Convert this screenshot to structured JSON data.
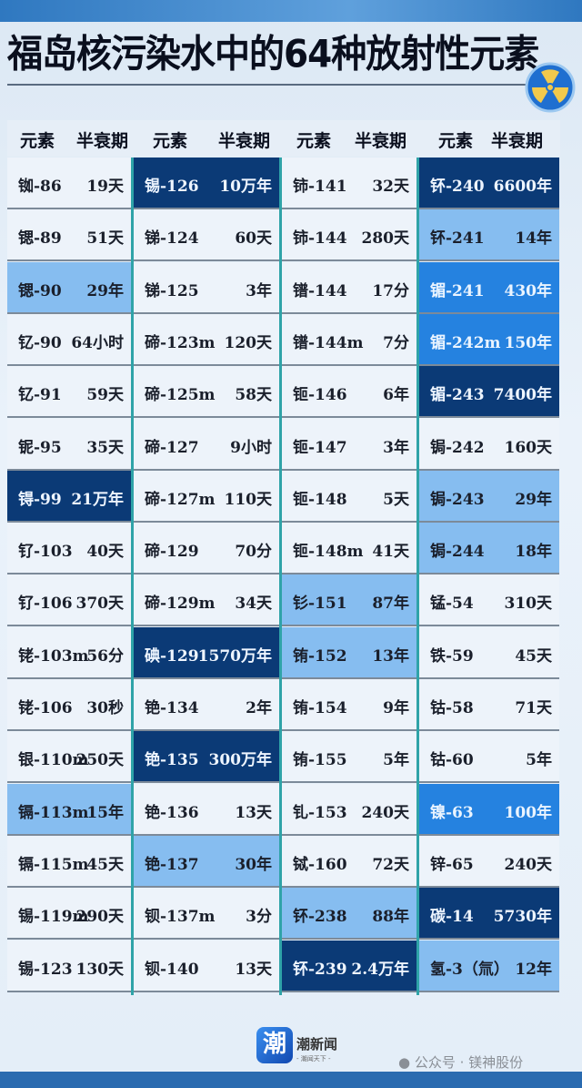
{
  "title": "福岛核污染水中的64种放射性元素",
  "header": {
    "element": "元素",
    "half_life": "半衰期"
  },
  "colors": {
    "none": "#edf3fa",
    "light": "#86bdf0",
    "mid": "#2582e0",
    "dark": "#0b3a76",
    "divider": "#2fa3a8"
  },
  "columns": [
    [
      {
        "name": "铷-86",
        "half_life": "19天",
        "level": "none"
      },
      {
        "name": "锶-89",
        "half_life": "51天",
        "level": "none"
      },
      {
        "name": "锶-90",
        "half_life": "29年",
        "level": "light"
      },
      {
        "name": "钇-90",
        "half_life": "64小时",
        "level": "none"
      },
      {
        "name": "钇-91",
        "half_life": "59天",
        "level": "none"
      },
      {
        "name": "铌-95",
        "half_life": "35天",
        "level": "none"
      },
      {
        "name": "锝-99",
        "half_life": "21万年",
        "level": "dark"
      },
      {
        "name": "钌-103",
        "half_life": "40天",
        "level": "none"
      },
      {
        "name": "钌-106",
        "half_life": "370天",
        "level": "none"
      },
      {
        "name": "铑-103m",
        "half_life": "56分",
        "level": "none"
      },
      {
        "name": "铑-106",
        "half_life": "30秒",
        "level": "none"
      },
      {
        "name": "银-110m",
        "half_life": "250天",
        "level": "none"
      },
      {
        "name": "镉-113m",
        "half_life": "15年",
        "level": "light"
      },
      {
        "name": "镉-115m",
        "half_life": "45天",
        "level": "none"
      },
      {
        "name": "锡-119m",
        "half_life": "290天",
        "level": "none"
      },
      {
        "name": "锡-123",
        "half_life": "130天",
        "level": "none"
      }
    ],
    [
      {
        "name": "锡-126",
        "half_life": "10万年",
        "level": "dark"
      },
      {
        "name": "锑-124",
        "half_life": "60天",
        "level": "none"
      },
      {
        "name": "锑-125",
        "half_life": "3年",
        "level": "none"
      },
      {
        "name": "碲-123m",
        "half_life": "120天",
        "level": "none"
      },
      {
        "name": "碲-125m",
        "half_life": "58天",
        "level": "none"
      },
      {
        "name": "碲-127",
        "half_life": "9小时",
        "level": "none"
      },
      {
        "name": "碲-127m",
        "half_life": "110天",
        "level": "none"
      },
      {
        "name": "碲-129",
        "half_life": "70分",
        "level": "none"
      },
      {
        "name": "碲-129m",
        "half_life": "34天",
        "level": "none"
      },
      {
        "name": "碘-129",
        "half_life": "1570万年",
        "level": "dark"
      },
      {
        "name": "铯-134",
        "half_life": "2年",
        "level": "none"
      },
      {
        "name": "铯-135",
        "half_life": "300万年",
        "level": "dark"
      },
      {
        "name": "铯-136",
        "half_life": "13天",
        "level": "none"
      },
      {
        "name": "铯-137",
        "half_life": "30年",
        "level": "light"
      },
      {
        "name": "钡-137m",
        "half_life": "3分",
        "level": "none"
      },
      {
        "name": "钡-140",
        "half_life": "13天",
        "level": "none"
      }
    ],
    [
      {
        "name": "铈-141",
        "half_life": "32天",
        "level": "none"
      },
      {
        "name": "铈-144",
        "half_life": "280天",
        "level": "none"
      },
      {
        "name": "镨-144",
        "half_life": "17分",
        "level": "none"
      },
      {
        "name": "镨-144m",
        "half_life": "7分",
        "level": "none"
      },
      {
        "name": "钷-146",
        "half_life": "6年",
        "level": "none"
      },
      {
        "name": "钷-147",
        "half_life": "3年",
        "level": "none"
      },
      {
        "name": "钷-148",
        "half_life": "5天",
        "level": "none"
      },
      {
        "name": "钷-148m",
        "half_life": "41天",
        "level": "none"
      },
      {
        "name": "钐-151",
        "half_life": "87年",
        "level": "light"
      },
      {
        "name": "铕-152",
        "half_life": "13年",
        "level": "light"
      },
      {
        "name": "铕-154",
        "half_life": "9年",
        "level": "none"
      },
      {
        "name": "铕-155",
        "half_life": "5年",
        "level": "none"
      },
      {
        "name": "钆-153",
        "half_life": "240天",
        "level": "none"
      },
      {
        "name": "铽-160",
        "half_life": "72天",
        "level": "none"
      },
      {
        "name": "钚-238",
        "half_life": "88年",
        "level": "light"
      },
      {
        "name": "钚-239",
        "half_life": "2.4万年",
        "level": "dark"
      }
    ],
    [
      {
        "name": "钚-240",
        "half_life": "6600年",
        "level": "dark"
      },
      {
        "name": "钚-241",
        "half_life": "14年",
        "level": "light"
      },
      {
        "name": "镅-241",
        "half_life": "430年",
        "level": "mid"
      },
      {
        "name": "镅-242m",
        "half_life": "150年",
        "level": "mid"
      },
      {
        "name": "镅-243",
        "half_life": "7400年",
        "level": "dark"
      },
      {
        "name": "锔-242",
        "half_life": "160天",
        "level": "none"
      },
      {
        "name": "锔-243",
        "half_life": "29年",
        "level": "light"
      },
      {
        "name": "锔-244",
        "half_life": "18年",
        "level": "light"
      },
      {
        "name": "锰-54",
        "half_life": "310天",
        "level": "none"
      },
      {
        "name": "铁-59",
        "half_life": "45天",
        "level": "none"
      },
      {
        "name": "钴-58",
        "half_life": "71天",
        "level": "none"
      },
      {
        "name": "钴-60",
        "half_life": "5年",
        "level": "none"
      },
      {
        "name": "镍-63",
        "half_life": "100年",
        "level": "mid"
      },
      {
        "name": "锌-65",
        "half_life": "240天",
        "level": "none"
      },
      {
        "name": "碳-14",
        "half_life": "5730年",
        "level": "dark"
      },
      {
        "name": "氢-3（氚）",
        "half_life": "12年",
        "level": "light"
      }
    ]
  ],
  "footer": {
    "logo_text": "潮",
    "brand": "潮新闻",
    "slogan": "- 潮闻天下 -",
    "watermark": "公众号 · 镁神股份"
  },
  "icons": {
    "radiation": "radiation-icon",
    "wechat": "wechat-icon"
  }
}
